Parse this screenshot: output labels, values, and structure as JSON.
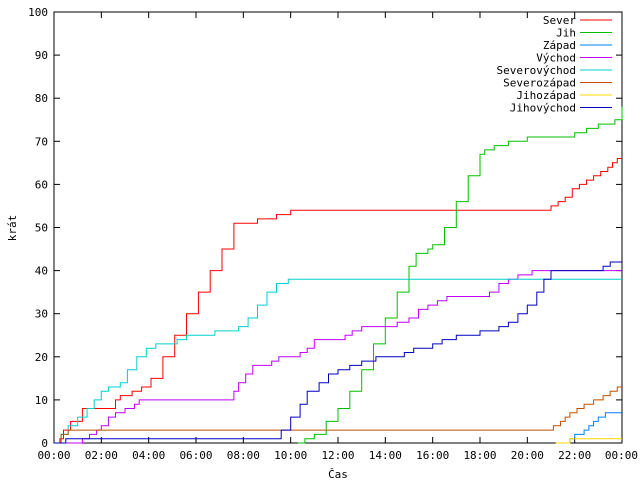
{
  "chart_data": {
    "type": "line",
    "xlabel": "Čas",
    "ylabel": "krát",
    "xlim": [
      0,
      24
    ],
    "ylim": [
      0,
      100
    ],
    "x_ticks": [
      "00:00",
      "02:00",
      "04:00",
      "06:00",
      "08:00",
      "10:00",
      "12:00",
      "14:00",
      "16:00",
      "18:00",
      "20:00",
      "22:00",
      "00:00"
    ],
    "y_ticks": [
      "0",
      "10",
      "20",
      "30",
      "40",
      "50",
      "60",
      "70",
      "80",
      "90",
      "100"
    ],
    "grid": false,
    "legend_position": "top-right",
    "series": [
      {
        "name": "Sever",
        "color": "#ff0000",
        "points": [
          [
            0,
            0
          ],
          [
            0.25,
            1
          ],
          [
            0.4,
            3
          ],
          [
            0.7,
            5
          ],
          [
            1.2,
            8
          ],
          [
            2.4,
            8
          ],
          [
            2.6,
            10
          ],
          [
            2.8,
            11
          ],
          [
            3.3,
            12
          ],
          [
            3.7,
            13
          ],
          [
            4.1,
            15
          ],
          [
            4.6,
            20
          ],
          [
            5.1,
            25
          ],
          [
            5.6,
            30
          ],
          [
            6.1,
            35
          ],
          [
            6.6,
            40
          ],
          [
            7.1,
            45
          ],
          [
            7.6,
            51
          ],
          [
            8.5,
            51
          ],
          [
            8.6,
            52
          ],
          [
            9.3,
            52
          ],
          [
            9.4,
            53
          ],
          [
            10,
            54
          ],
          [
            20.7,
            54
          ],
          [
            21,
            55
          ],
          [
            21.3,
            56
          ],
          [
            21.6,
            57
          ],
          [
            21.9,
            59
          ],
          [
            22.2,
            60
          ],
          [
            22.5,
            61
          ],
          [
            22.8,
            62
          ],
          [
            23.1,
            63
          ],
          [
            23.4,
            64
          ],
          [
            23.6,
            65
          ],
          [
            23.8,
            66
          ],
          [
            24,
            66
          ]
        ]
      },
      {
        "name": "Jih",
        "color": "#00c000",
        "points": [
          [
            10.3,
            0
          ],
          [
            10.6,
            1
          ],
          [
            11,
            2
          ],
          [
            11.5,
            5
          ],
          [
            12,
            8
          ],
          [
            12.5,
            12
          ],
          [
            13,
            17
          ],
          [
            13.5,
            23
          ],
          [
            14,
            29
          ],
          [
            14.5,
            35
          ],
          [
            15,
            41
          ],
          [
            15.3,
            44
          ],
          [
            15.8,
            45
          ],
          [
            16,
            46
          ],
          [
            16.5,
            50
          ],
          [
            17,
            56
          ],
          [
            17.5,
            62
          ],
          [
            18,
            67
          ],
          [
            18.2,
            68
          ],
          [
            18.6,
            69
          ],
          [
            19.2,
            70
          ],
          [
            20,
            71
          ],
          [
            21.5,
            71
          ],
          [
            22,
            72
          ],
          [
            22.5,
            73
          ],
          [
            23,
            74
          ],
          [
            23.7,
            75
          ],
          [
            24,
            78
          ]
        ]
      },
      {
        "name": "Západ",
        "color": "#0080ff",
        "points": [
          [
            21.4,
            0
          ],
          [
            21.8,
            1
          ],
          [
            22,
            2
          ],
          [
            22.4,
            3
          ],
          [
            22.6,
            4
          ],
          [
            22.8,
            5
          ],
          [
            23,
            6
          ],
          [
            23.3,
            7
          ],
          [
            24,
            7
          ]
        ]
      },
      {
        "name": "Východ",
        "color": "#c000ff",
        "points": [
          [
            0,
            0
          ],
          [
            1.2,
            1
          ],
          [
            1.5,
            2
          ],
          [
            1.8,
            3
          ],
          [
            2.0,
            4
          ],
          [
            2.3,
            6
          ],
          [
            2.6,
            7
          ],
          [
            3.0,
            8
          ],
          [
            3.4,
            9
          ],
          [
            3.6,
            10
          ],
          [
            7.4,
            10
          ],
          [
            7.6,
            12
          ],
          [
            7.8,
            14
          ],
          [
            8.1,
            16
          ],
          [
            8.4,
            18
          ],
          [
            9.2,
            19
          ],
          [
            9.5,
            20
          ],
          [
            10.2,
            20
          ],
          [
            10.4,
            21
          ],
          [
            10.7,
            22
          ],
          [
            11,
            24
          ],
          [
            12.3,
            25
          ],
          [
            12.6,
            26
          ],
          [
            13,
            27
          ],
          [
            14.5,
            28
          ],
          [
            15,
            29
          ],
          [
            15.4,
            31
          ],
          [
            15.8,
            32
          ],
          [
            16.2,
            33
          ],
          [
            16.6,
            34
          ],
          [
            18.4,
            35
          ],
          [
            18.8,
            37
          ],
          [
            19.2,
            38
          ],
          [
            19.6,
            39
          ],
          [
            20.2,
            40
          ],
          [
            24,
            40
          ]
        ]
      },
      {
        "name": "Severovýchod",
        "color": "#00d0d0",
        "points": [
          [
            0,
            0
          ],
          [
            0.3,
            2
          ],
          [
            0.6,
            4
          ],
          [
            1.0,
            6
          ],
          [
            1.4,
            8
          ],
          [
            1.7,
            10
          ],
          [
            2.0,
            12
          ],
          [
            2.3,
            13
          ],
          [
            2.8,
            14
          ],
          [
            3.1,
            17
          ],
          [
            3.5,
            20
          ],
          [
            3.9,
            22
          ],
          [
            4.3,
            23
          ],
          [
            5.2,
            24
          ],
          [
            5.6,
            25
          ],
          [
            6.8,
            26
          ],
          [
            7.8,
            27
          ],
          [
            8.2,
            29
          ],
          [
            8.6,
            32
          ],
          [
            9.0,
            35
          ],
          [
            9.4,
            37
          ],
          [
            9.9,
            38
          ],
          [
            24,
            38
          ]
        ]
      },
      {
        "name": "Severozápad",
        "color": "#c05000",
        "points": [
          [
            0,
            0
          ],
          [
            0.3,
            2
          ],
          [
            0.6,
            3
          ],
          [
            20.8,
            3
          ],
          [
            21.1,
            4
          ],
          [
            21.4,
            5
          ],
          [
            21.6,
            6
          ],
          [
            21.8,
            7
          ],
          [
            22.1,
            8
          ],
          [
            22.4,
            9
          ],
          [
            22.8,
            10
          ],
          [
            23.2,
            11
          ],
          [
            23.5,
            12
          ],
          [
            23.8,
            13
          ],
          [
            24,
            13
          ]
        ]
      },
      {
        "name": "Jihozápad",
        "color": "#ffd700",
        "points": [
          [
            21.2,
            0
          ],
          [
            21.8,
            1
          ],
          [
            24,
            1
          ]
        ]
      },
      {
        "name": "Jihovýchod",
        "color": "#0000c0",
        "points": [
          [
            0,
            0
          ],
          [
            0.5,
            1
          ],
          [
            9.3,
            1
          ],
          [
            9.6,
            3
          ],
          [
            10,
            6
          ],
          [
            10.4,
            9
          ],
          [
            10.7,
            12
          ],
          [
            11.2,
            14
          ],
          [
            11.6,
            16
          ],
          [
            12,
            17
          ],
          [
            12.5,
            18
          ],
          [
            13,
            19
          ],
          [
            13.6,
            20
          ],
          [
            14.8,
            21
          ],
          [
            15.2,
            22
          ],
          [
            16,
            23
          ],
          [
            16.4,
            24
          ],
          [
            17,
            25
          ],
          [
            18,
            26
          ],
          [
            18.8,
            27
          ],
          [
            19.2,
            28
          ],
          [
            19.6,
            30
          ],
          [
            20,
            32
          ],
          [
            20.4,
            35
          ],
          [
            20.7,
            38
          ],
          [
            21,
            40
          ],
          [
            23,
            40
          ],
          [
            23.2,
            41
          ],
          [
            23.5,
            42
          ],
          [
            24,
            42
          ]
        ]
      }
    ]
  }
}
